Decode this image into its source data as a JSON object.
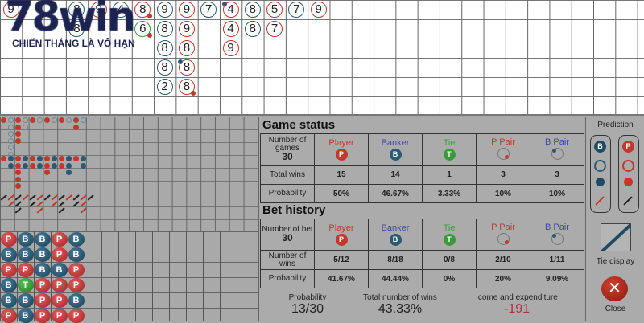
{
  "brand": {
    "logo": "78win",
    "tagline": "CHIẾN THẮNG LÀ VÔ HẠN"
  },
  "colors": {
    "player": "#c0392b",
    "banker": "#2a5a73",
    "tie": "#3a9a3a"
  },
  "score_grid": [
    {
      "row": 0,
      "col": 0,
      "n": "9",
      "side": "P"
    },
    {
      "row": 0,
      "col": 3,
      "n": "8",
      "side": "B"
    },
    {
      "row": 0,
      "col": 4,
      "n": "9",
      "side": "P"
    },
    {
      "row": 0,
      "col": 5,
      "n": "4",
      "side": "B"
    },
    {
      "row": 0,
      "col": 6,
      "n": "8",
      "side": "P",
      "pair": "P"
    },
    {
      "row": 0,
      "col": 7,
      "n": "9",
      "side": "B"
    },
    {
      "row": 0,
      "col": 8,
      "n": "9",
      "side": "P"
    },
    {
      "row": 0,
      "col": 9,
      "n": "7",
      "side": "B"
    },
    {
      "row": 0,
      "col": 10,
      "n": "4",
      "side": "P",
      "pair": "B"
    },
    {
      "row": 0,
      "col": 11,
      "n": "8",
      "side": "B"
    },
    {
      "row": 0,
      "col": 12,
      "n": "5",
      "side": "P"
    },
    {
      "row": 0,
      "col": 13,
      "n": "7",
      "side": "B"
    },
    {
      "row": 0,
      "col": 14,
      "n": "9",
      "side": "P"
    },
    {
      "row": 1,
      "col": 3,
      "n": "8",
      "side": "B"
    },
    {
      "row": 1,
      "col": 6,
      "n": "6",
      "side": "T",
      "pair": "P"
    },
    {
      "row": 1,
      "col": 7,
      "n": "8",
      "side": "B"
    },
    {
      "row": 1,
      "col": 8,
      "n": "9",
      "side": "P"
    },
    {
      "row": 1,
      "col": 10,
      "n": "4",
      "side": "P"
    },
    {
      "row": 1,
      "col": 11,
      "n": "8",
      "side": "B"
    },
    {
      "row": 1,
      "col": 12,
      "n": "7",
      "side": "P"
    },
    {
      "row": 2,
      "col": 7,
      "n": "8",
      "side": "B"
    },
    {
      "row": 2,
      "col": 8,
      "n": "8",
      "side": "P"
    },
    {
      "row": 2,
      "col": 10,
      "n": "9",
      "side": "P"
    },
    {
      "row": 3,
      "col": 7,
      "n": "8",
      "side": "B"
    },
    {
      "row": 3,
      "col": 8,
      "n": "8",
      "side": "P",
      "pair": "B"
    },
    {
      "row": 4,
      "col": 7,
      "n": "2",
      "side": "B"
    },
    {
      "row": 4,
      "col": 8,
      "n": "8",
      "side": "P",
      "pair": "P"
    }
  ],
  "bead_road": [
    [
      "P",
      "B",
      "B",
      "P",
      "B"
    ],
    [
      "B",
      "B",
      "B",
      "P",
      "B"
    ],
    [
      "P",
      "P",
      "B",
      "B",
      "P"
    ],
    [
      "B",
      "T",
      "P",
      "P",
      "P"
    ],
    [
      "B",
      "B",
      "P",
      "P",
      "B"
    ],
    [
      "P",
      "B",
      "P",
      "P",
      "P"
    ]
  ],
  "game_status": {
    "title": "Game status",
    "count_label": "Number of games",
    "count": "30",
    "columns": [
      {
        "label": "Player",
        "icon": "P"
      },
      {
        "label": "Banker",
        "icon": "B"
      },
      {
        "label": "Tie",
        "icon": "T"
      },
      {
        "label": "P Pair",
        "icon": "ppair"
      },
      {
        "label": "B Pair",
        "icon": "bpair"
      }
    ],
    "rows": [
      {
        "label": "Total wins",
        "values": [
          "15",
          "14",
          "1",
          "3",
          "3"
        ]
      },
      {
        "label": "Probability",
        "values": [
          "50%",
          "46.67%",
          "3.33%",
          "10%",
          "10%"
        ]
      }
    ]
  },
  "bet_history": {
    "title": "Bet history",
    "count_label": "Number of bet",
    "count": "30",
    "columns": [
      {
        "label": "Player",
        "icon": "P"
      },
      {
        "label": "Banker",
        "icon": "B"
      },
      {
        "label": "Tie",
        "icon": "T"
      },
      {
        "label": "P Pair",
        "icon": "ppair"
      },
      {
        "label": "B Pair",
        "icon": "bpair"
      }
    ],
    "rows": [
      {
        "label": "Number of wins",
        "values": [
          "5/12",
          "8/18",
          "0/8",
          "2/10",
          "1/11"
        ]
      },
      {
        "label": "Probability",
        "values": [
          "41.67%",
          "44.44%",
          "0%",
          "20%",
          "9.09%"
        ]
      }
    ]
  },
  "summary": [
    {
      "label": "Probability",
      "value": "13/30"
    },
    {
      "label": "Total number of wins",
      "value": "43.33%"
    },
    {
      "label": "Icome and expenditure",
      "value": "-191"
    }
  ],
  "sidebar": {
    "prediction": "Prediction",
    "tie_display": "Tie display",
    "close": "Close"
  }
}
